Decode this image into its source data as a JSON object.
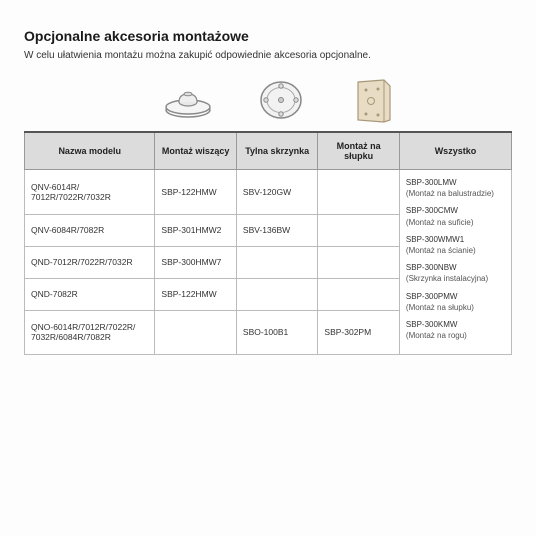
{
  "title": "Opcjonalne akcesoria montażowe",
  "subtitle": "W celu ułatwienia montażu można zakupić odpowiednie akcesoria opcjonalne.",
  "headers": {
    "model": "Nazwa modelu",
    "hanging": "Montaż wiszący",
    "backbox": "Tylna skrzynka",
    "pole": "Montaż na słupku",
    "all": "Wszystko"
  },
  "rows": [
    {
      "model": "QNV-6014R/ 7012R/7022R/7032R",
      "hanging": "SBP-122HMW",
      "backbox": "SBV-120GW",
      "pole": ""
    },
    {
      "model": "QNV-6084R/7082R",
      "hanging": "SBP-301HMW2",
      "backbox": "SBV-136BW",
      "pole": ""
    },
    {
      "model": "QND-7012R/7022R/7032R",
      "hanging": "SBP-300HMW7",
      "backbox": "",
      "pole": ""
    },
    {
      "model": "QND-7082R",
      "hanging": "SBP-122HMW",
      "backbox": "",
      "pole": ""
    },
    {
      "model": "QNO-6014R/7012R/7022R/ 7032R/6084R/7082R",
      "hanging": "",
      "backbox": "SBO-100B1",
      "pole": "SBP-302PM"
    }
  ],
  "all_items": [
    {
      "code": "SBP-300LMW",
      "desc": "(Montaż na balustradzie)"
    },
    {
      "code": "SBP-300CMW",
      "desc": "(Montaż na suficie)"
    },
    {
      "code": "SBP-300WMW1",
      "desc": "(Montaż na ścianie)"
    },
    {
      "code": "SBP-300NBW",
      "desc": "(Skrzynka instalacyjna)"
    },
    {
      "code": "SBP-300PMW",
      "desc": "(Montaż na słupku)"
    },
    {
      "code": "SBP-300KMW",
      "desc": "(Montaż na rogu)"
    }
  ],
  "icons": {
    "hanging_color": "#8c8c8c",
    "backbox_color": "#8c8c8c",
    "pole_color": "#b8a88a"
  }
}
